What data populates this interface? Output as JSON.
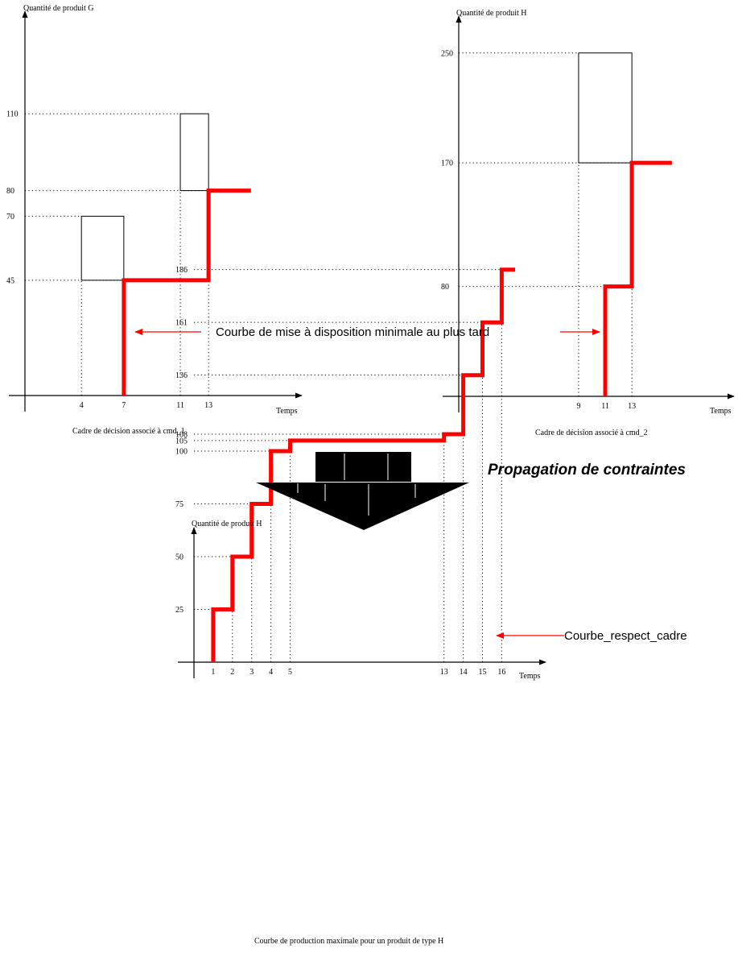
{
  "chart_data": [
    {
      "id": "g",
      "type": "line",
      "ylabel": "Quantité de produit G",
      "xlabel": "Temps",
      "caption": "Cadre de décision associé à cmd_1",
      "xlim": [
        0,
        19
      ],
      "ylim": [
        0,
        120
      ],
      "xticks": [
        4,
        7,
        11,
        13
      ],
      "yticks": [
        45,
        70,
        80,
        110
      ],
      "boxes": [
        {
          "x": [
            4,
            7
          ],
          "y": [
            45,
            70
          ]
        },
        {
          "x": [
            11,
            13
          ],
          "y": [
            80,
            110
          ]
        }
      ],
      "curve": [
        [
          7,
          0
        ],
        [
          7,
          45
        ],
        [
          13,
          45
        ],
        [
          13,
          80
        ],
        [
          16,
          80
        ]
      ]
    },
    {
      "id": "h1",
      "type": "line",
      "ylabel": "Quantité de produit H",
      "xlabel": "Temps",
      "caption": "Cadre de décision associé à cmd_2",
      "xlim": [
        0,
        19.5
      ],
      "ylim": [
        0,
        262
      ],
      "xticks": [
        9,
        11,
        13
      ],
      "yticks": [
        80,
        170,
        250
      ],
      "boxes": [
        {
          "x": [
            9,
            13
          ],
          "y": [
            170,
            250
          ]
        }
      ],
      "curve": [
        [
          11,
          0
        ],
        [
          11,
          80
        ],
        [
          13,
          80
        ],
        [
          13,
          170
        ],
        [
          16,
          170
        ]
      ]
    },
    {
      "id": "h2",
      "type": "line",
      "ylabel": "Quantité de produit H",
      "xlabel": "Temps",
      "caption": "Courbe de production maximale pour un produit de type H",
      "xlim": [
        0,
        17.6
      ],
      "ylim": [
        0,
        200
      ],
      "xticks": [
        1,
        2,
        3,
        4,
        5,
        13,
        14,
        15,
        16
      ],
      "yticks": [
        25,
        50,
        75,
        100,
        105,
        108,
        136,
        161,
        186
      ],
      "boxes": [],
      "curve": [
        [
          1,
          0
        ],
        [
          1,
          25
        ],
        [
          2,
          25
        ],
        [
          2,
          50
        ],
        [
          3,
          50
        ],
        [
          3,
          75
        ],
        [
          4,
          75
        ],
        [
          4,
          100
        ],
        [
          5,
          100
        ],
        [
          5,
          105
        ],
        [
          13,
          105
        ],
        [
          13,
          108
        ],
        [
          14,
          108
        ],
        [
          14,
          136
        ],
        [
          15,
          136
        ],
        [
          15,
          161
        ],
        [
          16,
          161
        ],
        [
          16,
          186
        ],
        [
          16.7,
          186
        ]
      ]
    }
  ],
  "annotations": {
    "courbe_label": "Courbe de mise à disposition minimale au plus tard",
    "propagation": "Propagation de contraintes",
    "respect_label": "Courbe_respect_cadre"
  },
  "colors": {
    "curve": "#ff0000",
    "axis": "#000000"
  }
}
